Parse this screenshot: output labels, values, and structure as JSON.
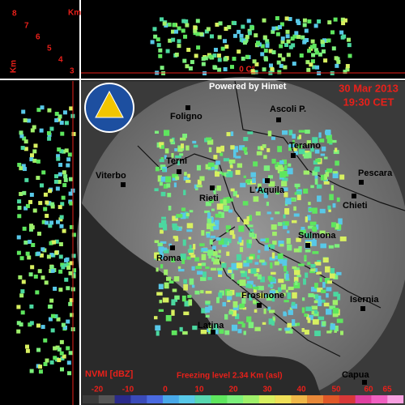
{
  "header": {
    "powered": "Powered by Himet",
    "date": "30 Mar 2013",
    "time": "19:30 CET"
  },
  "height_axis": {
    "unit": "Km",
    "unit_side": "Km",
    "ticks": [
      "8",
      "7",
      "6",
      "5",
      "4",
      "3"
    ]
  },
  "freezing_marker": "0 C°",
  "cities": [
    {
      "label": "Foligno"
    },
    {
      "label": "Ascoli P."
    },
    {
      "label": "Teramo"
    },
    {
      "label": "Terni"
    },
    {
      "label": "Viterbo"
    },
    {
      "label": "Pescara"
    },
    {
      "label": "Rieti"
    },
    {
      "label": "L'Aquila"
    },
    {
      "label": "Chieti"
    },
    {
      "label": "Sulmona"
    },
    {
      "label": "Roma"
    },
    {
      "label": "Frosinone"
    },
    {
      "label": "Isernia"
    },
    {
      "label": "Latina"
    },
    {
      "label": "Capua"
    }
  ],
  "legend": {
    "title": "NVMI [dBZ]",
    "freezing": "Freezing level  2.34 Km (asl)",
    "scale": [
      "-20",
      "-10",
      "0",
      "10",
      "20",
      "30",
      "40",
      "50",
      "60",
      "65"
    ]
  }
}
